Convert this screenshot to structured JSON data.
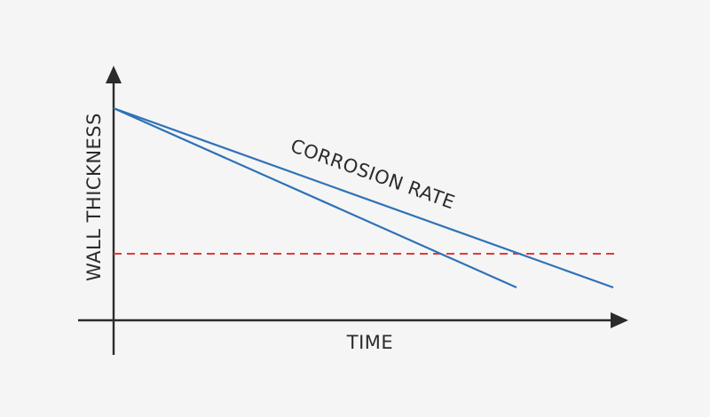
{
  "diagram": {
    "x_axis_label": "TIME",
    "y_axis_label": "WALL THICKNESS",
    "annotation": "CORROSION RATE"
  },
  "colors": {
    "background": "#f5f5f5",
    "axis": "#2b2b2b",
    "trend_line": "#2f72b8",
    "threshold_line": "#e03a3a",
    "text": "#2b2b2b"
  }
}
